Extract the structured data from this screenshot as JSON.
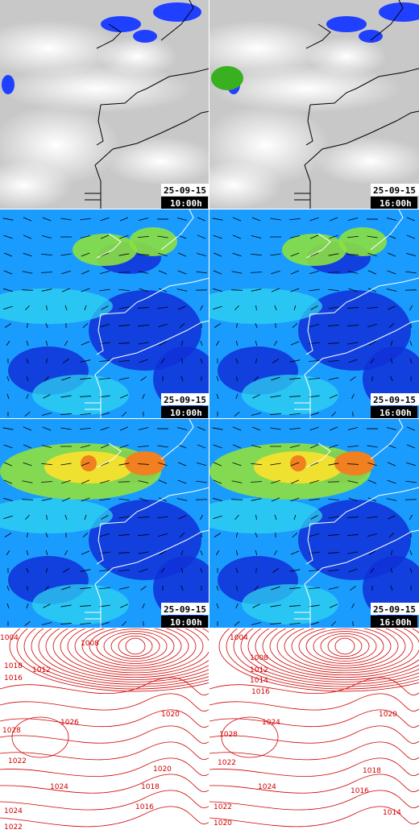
{
  "panels": [
    {
      "date": "25-09-15",
      "time": "10:00h"
    },
    {
      "date": "25-09-15",
      "time": "16:00h"
    },
    {
      "date": "25-09-15",
      "time": "10:00h"
    },
    {
      "date": "25-09-15",
      "time": "16:00h"
    },
    {
      "date": "25-09-15",
      "time": "10:00h"
    },
    {
      "date": "25-09-15",
      "time": "16:00h"
    }
  ],
  "isobar_labels": [
    [
      "1004",
      "1008",
      "1012",
      "1016",
      "1018",
      "1020",
      "1022",
      "1024",
      "1028",
      "1026",
      "1024",
      "1022",
      "1020",
      "1018",
      "1016"
    ],
    [
      "1004",
      "1008",
      "1012",
      "1014",
      "1016",
      "1020",
      "1022",
      "1024",
      "1028",
      "1024",
      "1022",
      "1020",
      "1018",
      "1016",
      "1014"
    ]
  ]
}
